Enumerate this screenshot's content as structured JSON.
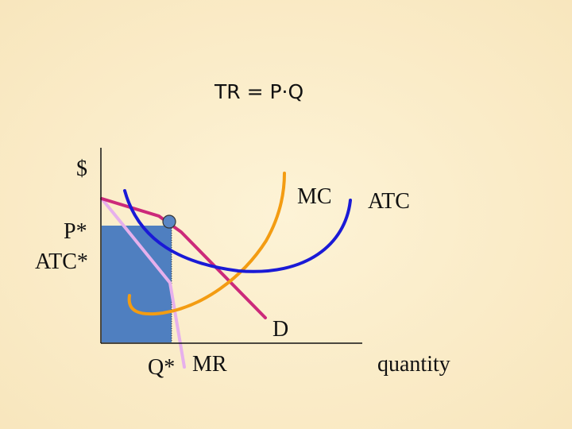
{
  "title": "TR = P·Q",
  "labels": {
    "dollar": "$",
    "p_star": "P*",
    "atc_star": "ATC*",
    "q_star": "Q*",
    "mr": "MR",
    "mc": "MC",
    "atc": "ATC",
    "demand": "D",
    "quantity": "quantity"
  },
  "colors": {
    "axis": "#111111",
    "demand": "#cc2a7a",
    "mr": "#e6b0ec",
    "mc": "#f39c12",
    "atc": "#1a1ad6",
    "tr_area": "#4f7fc0",
    "point": "#5b86c4"
  }
}
